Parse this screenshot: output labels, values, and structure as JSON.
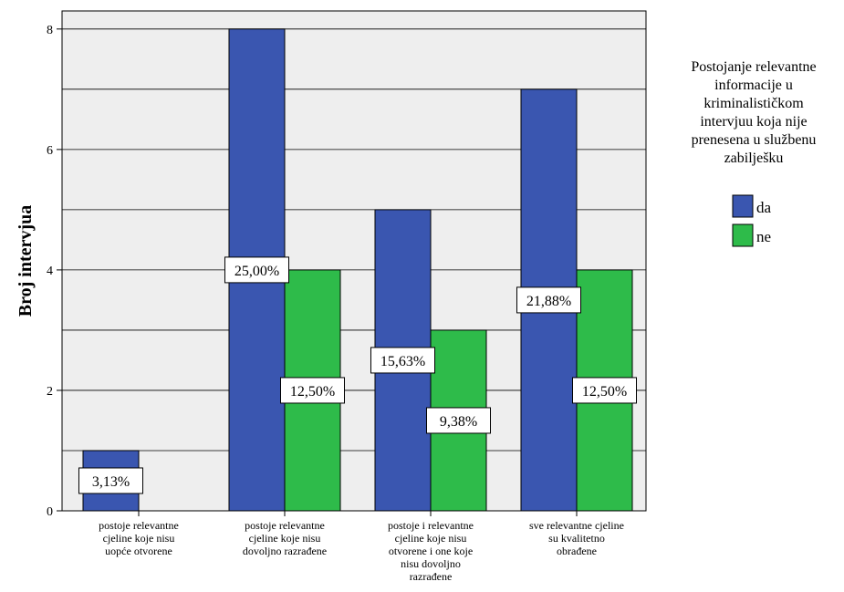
{
  "chart_data": {
    "type": "bar",
    "ylabel": "Broj intervjua",
    "ylim": [
      0,
      8.3
    ],
    "yticks": [
      0,
      2,
      4,
      6,
      8
    ],
    "grid": true,
    "legend_position": "right",
    "categories": [
      [
        "postoje relevantne",
        "cjeline koje nisu",
        "uopće otvorene"
      ],
      [
        "postoje relevantne",
        "cjeline koje nisu",
        "dovoljno razrađene"
      ],
      [
        "postoje i relevantne",
        "cjeline koje nisu",
        "otvorene i one koje",
        "nisu dovoljno",
        "razrađene"
      ],
      [
        "sve relevantne cjeline",
        "su kvalitetno",
        "obrađene"
      ]
    ],
    "legend_title": [
      "Postojanje relevantne",
      "informacije u",
      "kriminalističkom",
      "intervjuu koja nije",
      "prenesena u službenu",
      "zabilješku"
    ],
    "series": [
      {
        "name": "da",
        "color": "#3a56b0",
        "values": [
          1,
          8,
          5,
          7
        ],
        "labels": [
          "3,13%",
          "25,00%",
          "15,63%",
          "21,88%"
        ]
      },
      {
        "name": "ne",
        "color": "#2ebb4a",
        "values": [
          0,
          4,
          3,
          4
        ],
        "labels": [
          "",
          "12,50%",
          "9,38%",
          "12,50%"
        ]
      }
    ]
  }
}
